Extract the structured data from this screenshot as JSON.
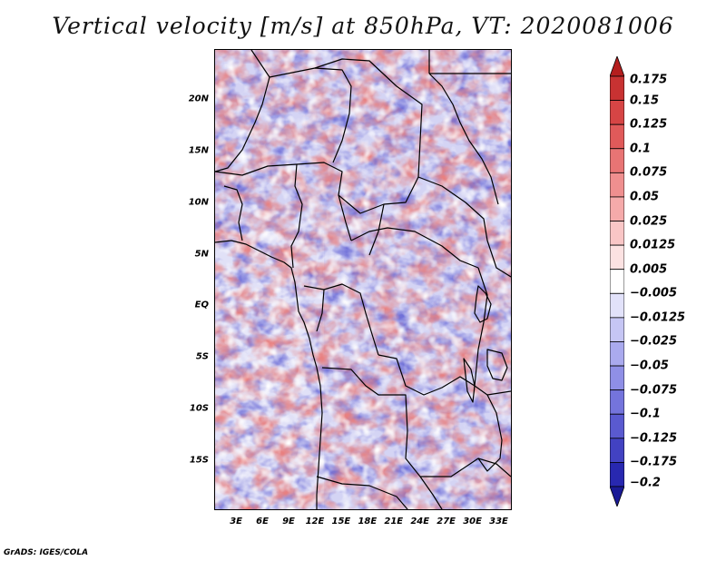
{
  "title": "Vertical velocity [m/s] at 850hPa, VT: 2020081006",
  "credit": "GrADS: IGES/COLA",
  "lat_labels": [
    "20N",
    "15N",
    "10N",
    "5N",
    "EQ",
    "5S",
    "10S",
    "15S"
  ],
  "lat_values": [
    20,
    15,
    10,
    5,
    0,
    -5,
    -10,
    -15
  ],
  "lon_labels": [
    "3E",
    "6E",
    "9E",
    "12E",
    "15E",
    "18E",
    "21E",
    "24E",
    "27E",
    "30E",
    "33E"
  ],
  "lon_values": [
    3,
    6,
    9,
    12,
    15,
    18,
    21,
    24,
    27,
    30,
    33
  ],
  "extent": {
    "lon_min": 0.5,
    "lon_max": 34.5,
    "lat_min": -19.8,
    "lat_max": 24.8
  },
  "colorbar": {
    "labels": [
      "0.175",
      "0.15",
      "0.125",
      "0.1",
      "0.075",
      "0.05",
      "0.025",
      "0.0125",
      "0.005",
      "−0.005",
      "−0.0125",
      "−0.025",
      "−0.05",
      "−0.075",
      "−0.1",
      "−0.125",
      "−0.175",
      "−0.2"
    ],
    "colors": [
      "#b41e1e",
      "#c83232",
      "#d64545",
      "#e05a5a",
      "#e87474",
      "#ef8f8f",
      "#f5aaaa",
      "#f9c6c6",
      "#fce2e2",
      "#ffffff",
      "#e2e2fa",
      "#c6c6f4",
      "#aaaaee",
      "#8f8fe6",
      "#7474dc",
      "#5a5ad0",
      "#4242c2",
      "#2828b0",
      "#1a1a96"
    ]
  }
}
